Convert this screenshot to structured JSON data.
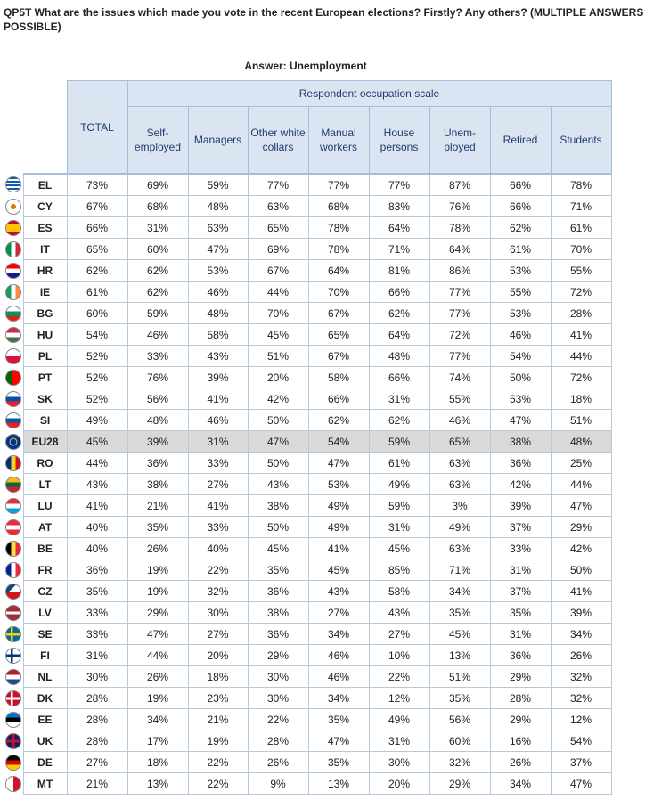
{
  "question": "QP5T  What are the issues which made you vote in the recent European elections? Firstly? Any others? (MULTIPLE ANSWERS POSSIBLE)",
  "answer_label": "Answer: Unemployment",
  "header": {
    "total": "TOTAL",
    "scale": "Respondent occupation scale",
    "columns": [
      "Self-\nemployed",
      "Managers",
      "Other white\ncollars",
      "Manual\nworkers",
      "House\npersons",
      "Unem-\nployed",
      "Retired",
      "Students"
    ]
  },
  "highlight_row": "EU28",
  "highlight_color": "#d9d9d9",
  "header_color": "#dbe5f1",
  "rows": [
    {
      "code": "EL",
      "flag": "greece-flag-icon",
      "total": "73%",
      "values": [
        "69%",
        "59%",
        "77%",
        "77%",
        "77%",
        "87%",
        "66%",
        "78%"
      ]
    },
    {
      "code": "CY",
      "flag": "cyprus-flag-icon",
      "total": "67%",
      "values": [
        "68%",
        "48%",
        "63%",
        "68%",
        "83%",
        "76%",
        "66%",
        "71%"
      ]
    },
    {
      "code": "ES",
      "flag": "spain-flag-icon",
      "total": "66%",
      "values": [
        "31%",
        "63%",
        "65%",
        "78%",
        "64%",
        "78%",
        "62%",
        "61%"
      ]
    },
    {
      "code": "IT",
      "flag": "italy-flag-icon",
      "total": "65%",
      "values": [
        "60%",
        "47%",
        "69%",
        "78%",
        "71%",
        "64%",
        "61%",
        "70%"
      ]
    },
    {
      "code": "HR",
      "flag": "croatia-flag-icon",
      "total": "62%",
      "values": [
        "62%",
        "53%",
        "67%",
        "64%",
        "81%",
        "86%",
        "53%",
        "55%"
      ]
    },
    {
      "code": "IE",
      "flag": "ireland-flag-icon",
      "total": "61%",
      "values": [
        "62%",
        "46%",
        "44%",
        "70%",
        "66%",
        "77%",
        "55%",
        "72%"
      ]
    },
    {
      "code": "BG",
      "flag": "bulgaria-flag-icon",
      "total": "60%",
      "values": [
        "59%",
        "48%",
        "70%",
        "67%",
        "62%",
        "77%",
        "53%",
        "28%"
      ]
    },
    {
      "code": "HU",
      "flag": "hungary-flag-icon",
      "total": "54%",
      "values": [
        "46%",
        "58%",
        "45%",
        "65%",
        "64%",
        "72%",
        "46%",
        "41%"
      ]
    },
    {
      "code": "PL",
      "flag": "poland-flag-icon",
      "total": "52%",
      "values": [
        "33%",
        "43%",
        "51%",
        "67%",
        "48%",
        "77%",
        "54%",
        "44%"
      ]
    },
    {
      "code": "PT",
      "flag": "portugal-flag-icon",
      "total": "52%",
      "values": [
        "76%",
        "39%",
        "20%",
        "58%",
        "66%",
        "74%",
        "50%",
        "72%"
      ]
    },
    {
      "code": "SK",
      "flag": "slovakia-flag-icon",
      "total": "52%",
      "values": [
        "56%",
        "41%",
        "42%",
        "66%",
        "31%",
        "55%",
        "53%",
        "18%"
      ]
    },
    {
      "code": "SI",
      "flag": "slovenia-flag-icon",
      "total": "49%",
      "values": [
        "48%",
        "46%",
        "50%",
        "62%",
        "62%",
        "46%",
        "47%",
        "51%"
      ]
    },
    {
      "code": "EU28",
      "flag": "eu-flag-icon",
      "total": "45%",
      "values": [
        "39%",
        "31%",
        "47%",
        "54%",
        "59%",
        "65%",
        "38%",
        "48%"
      ]
    },
    {
      "code": "RO",
      "flag": "romania-flag-icon",
      "total": "44%",
      "values": [
        "36%",
        "33%",
        "50%",
        "47%",
        "61%",
        "63%",
        "36%",
        "25%"
      ]
    },
    {
      "code": "LT",
      "flag": "lithuania-flag-icon",
      "total": "43%",
      "values": [
        "38%",
        "27%",
        "43%",
        "53%",
        "49%",
        "63%",
        "42%",
        "44%"
      ]
    },
    {
      "code": "LU",
      "flag": "luxembourg-flag-icon",
      "total": "41%",
      "values": [
        "21%",
        "41%",
        "38%",
        "49%",
        "59%",
        "3%",
        "39%",
        "47%"
      ]
    },
    {
      "code": "AT",
      "flag": "austria-flag-icon",
      "total": "40%",
      "values": [
        "35%",
        "33%",
        "50%",
        "49%",
        "31%",
        "49%",
        "37%",
        "29%"
      ]
    },
    {
      "code": "BE",
      "flag": "belgium-flag-icon",
      "total": "40%",
      "values": [
        "26%",
        "40%",
        "45%",
        "41%",
        "45%",
        "63%",
        "33%",
        "42%"
      ]
    },
    {
      "code": "FR",
      "flag": "france-flag-icon",
      "total": "36%",
      "values": [
        "19%",
        "22%",
        "35%",
        "45%",
        "85%",
        "71%",
        "31%",
        "50%"
      ]
    },
    {
      "code": "CZ",
      "flag": "czechia-flag-icon",
      "total": "35%",
      "values": [
        "19%",
        "32%",
        "36%",
        "43%",
        "58%",
        "34%",
        "37%",
        "41%"
      ]
    },
    {
      "code": "LV",
      "flag": "latvia-flag-icon",
      "total": "33%",
      "values": [
        "29%",
        "30%",
        "38%",
        "27%",
        "43%",
        "35%",
        "35%",
        "39%"
      ]
    },
    {
      "code": "SE",
      "flag": "sweden-flag-icon",
      "total": "33%",
      "values": [
        "47%",
        "27%",
        "36%",
        "34%",
        "27%",
        "45%",
        "31%",
        "34%"
      ]
    },
    {
      "code": "FI",
      "flag": "finland-flag-icon",
      "total": "31%",
      "values": [
        "44%",
        "20%",
        "29%",
        "46%",
        "10%",
        "13%",
        "36%",
        "26%"
      ]
    },
    {
      "code": "NL",
      "flag": "netherlands-flag-icon",
      "total": "30%",
      "values": [
        "26%",
        "18%",
        "30%",
        "46%",
        "22%",
        "51%",
        "29%",
        "32%"
      ]
    },
    {
      "code": "DK",
      "flag": "denmark-flag-icon",
      "total": "28%",
      "values": [
        "19%",
        "23%",
        "30%",
        "34%",
        "12%",
        "35%",
        "28%",
        "32%"
      ]
    },
    {
      "code": "EE",
      "flag": "estonia-flag-icon",
      "total": "28%",
      "values": [
        "34%",
        "21%",
        "22%",
        "35%",
        "49%",
        "56%",
        "29%",
        "12%"
      ]
    },
    {
      "code": "UK",
      "flag": "uk-flag-icon",
      "total": "28%",
      "values": [
        "17%",
        "19%",
        "28%",
        "47%",
        "31%",
        "60%",
        "16%",
        "54%"
      ]
    },
    {
      "code": "DE",
      "flag": "germany-flag-icon",
      "total": "27%",
      "values": [
        "18%",
        "22%",
        "26%",
        "35%",
        "30%",
        "32%",
        "26%",
        "37%"
      ]
    },
    {
      "code": "MT",
      "flag": "malta-flag-icon",
      "total": "21%",
      "values": [
        "13%",
        "22%",
        "9%",
        "13%",
        "20%",
        "29%",
        "34%",
        "47%"
      ]
    }
  ]
}
